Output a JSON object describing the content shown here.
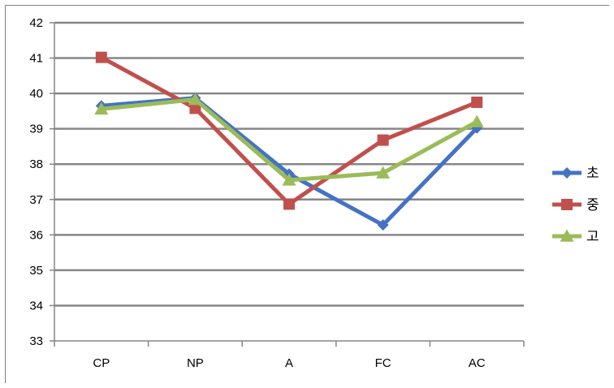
{
  "chart_data": {
    "type": "line",
    "categories": [
      "CP",
      "NP",
      "A",
      "FC",
      "AC"
    ],
    "ylim": [
      33,
      42
    ],
    "yticks": [
      33,
      34,
      35,
      36,
      37,
      38,
      39,
      40,
      41,
      42
    ],
    "grid": true,
    "legend_position": "right",
    "series": [
      {
        "name": "초",
        "color": "#4472C4",
        "marker": "diamond",
        "values": [
          39.65,
          39.87,
          37.72,
          36.28,
          39.02
        ]
      },
      {
        "name": "중",
        "color": "#C0504D",
        "marker": "square",
        "values": [
          41.02,
          39.58,
          36.87,
          38.68,
          39.75
        ]
      },
      {
        "name": "고",
        "color": "#9BBB59",
        "marker": "triangle",
        "values": [
          39.56,
          39.83,
          37.55,
          37.75,
          39.2
        ]
      }
    ]
  }
}
